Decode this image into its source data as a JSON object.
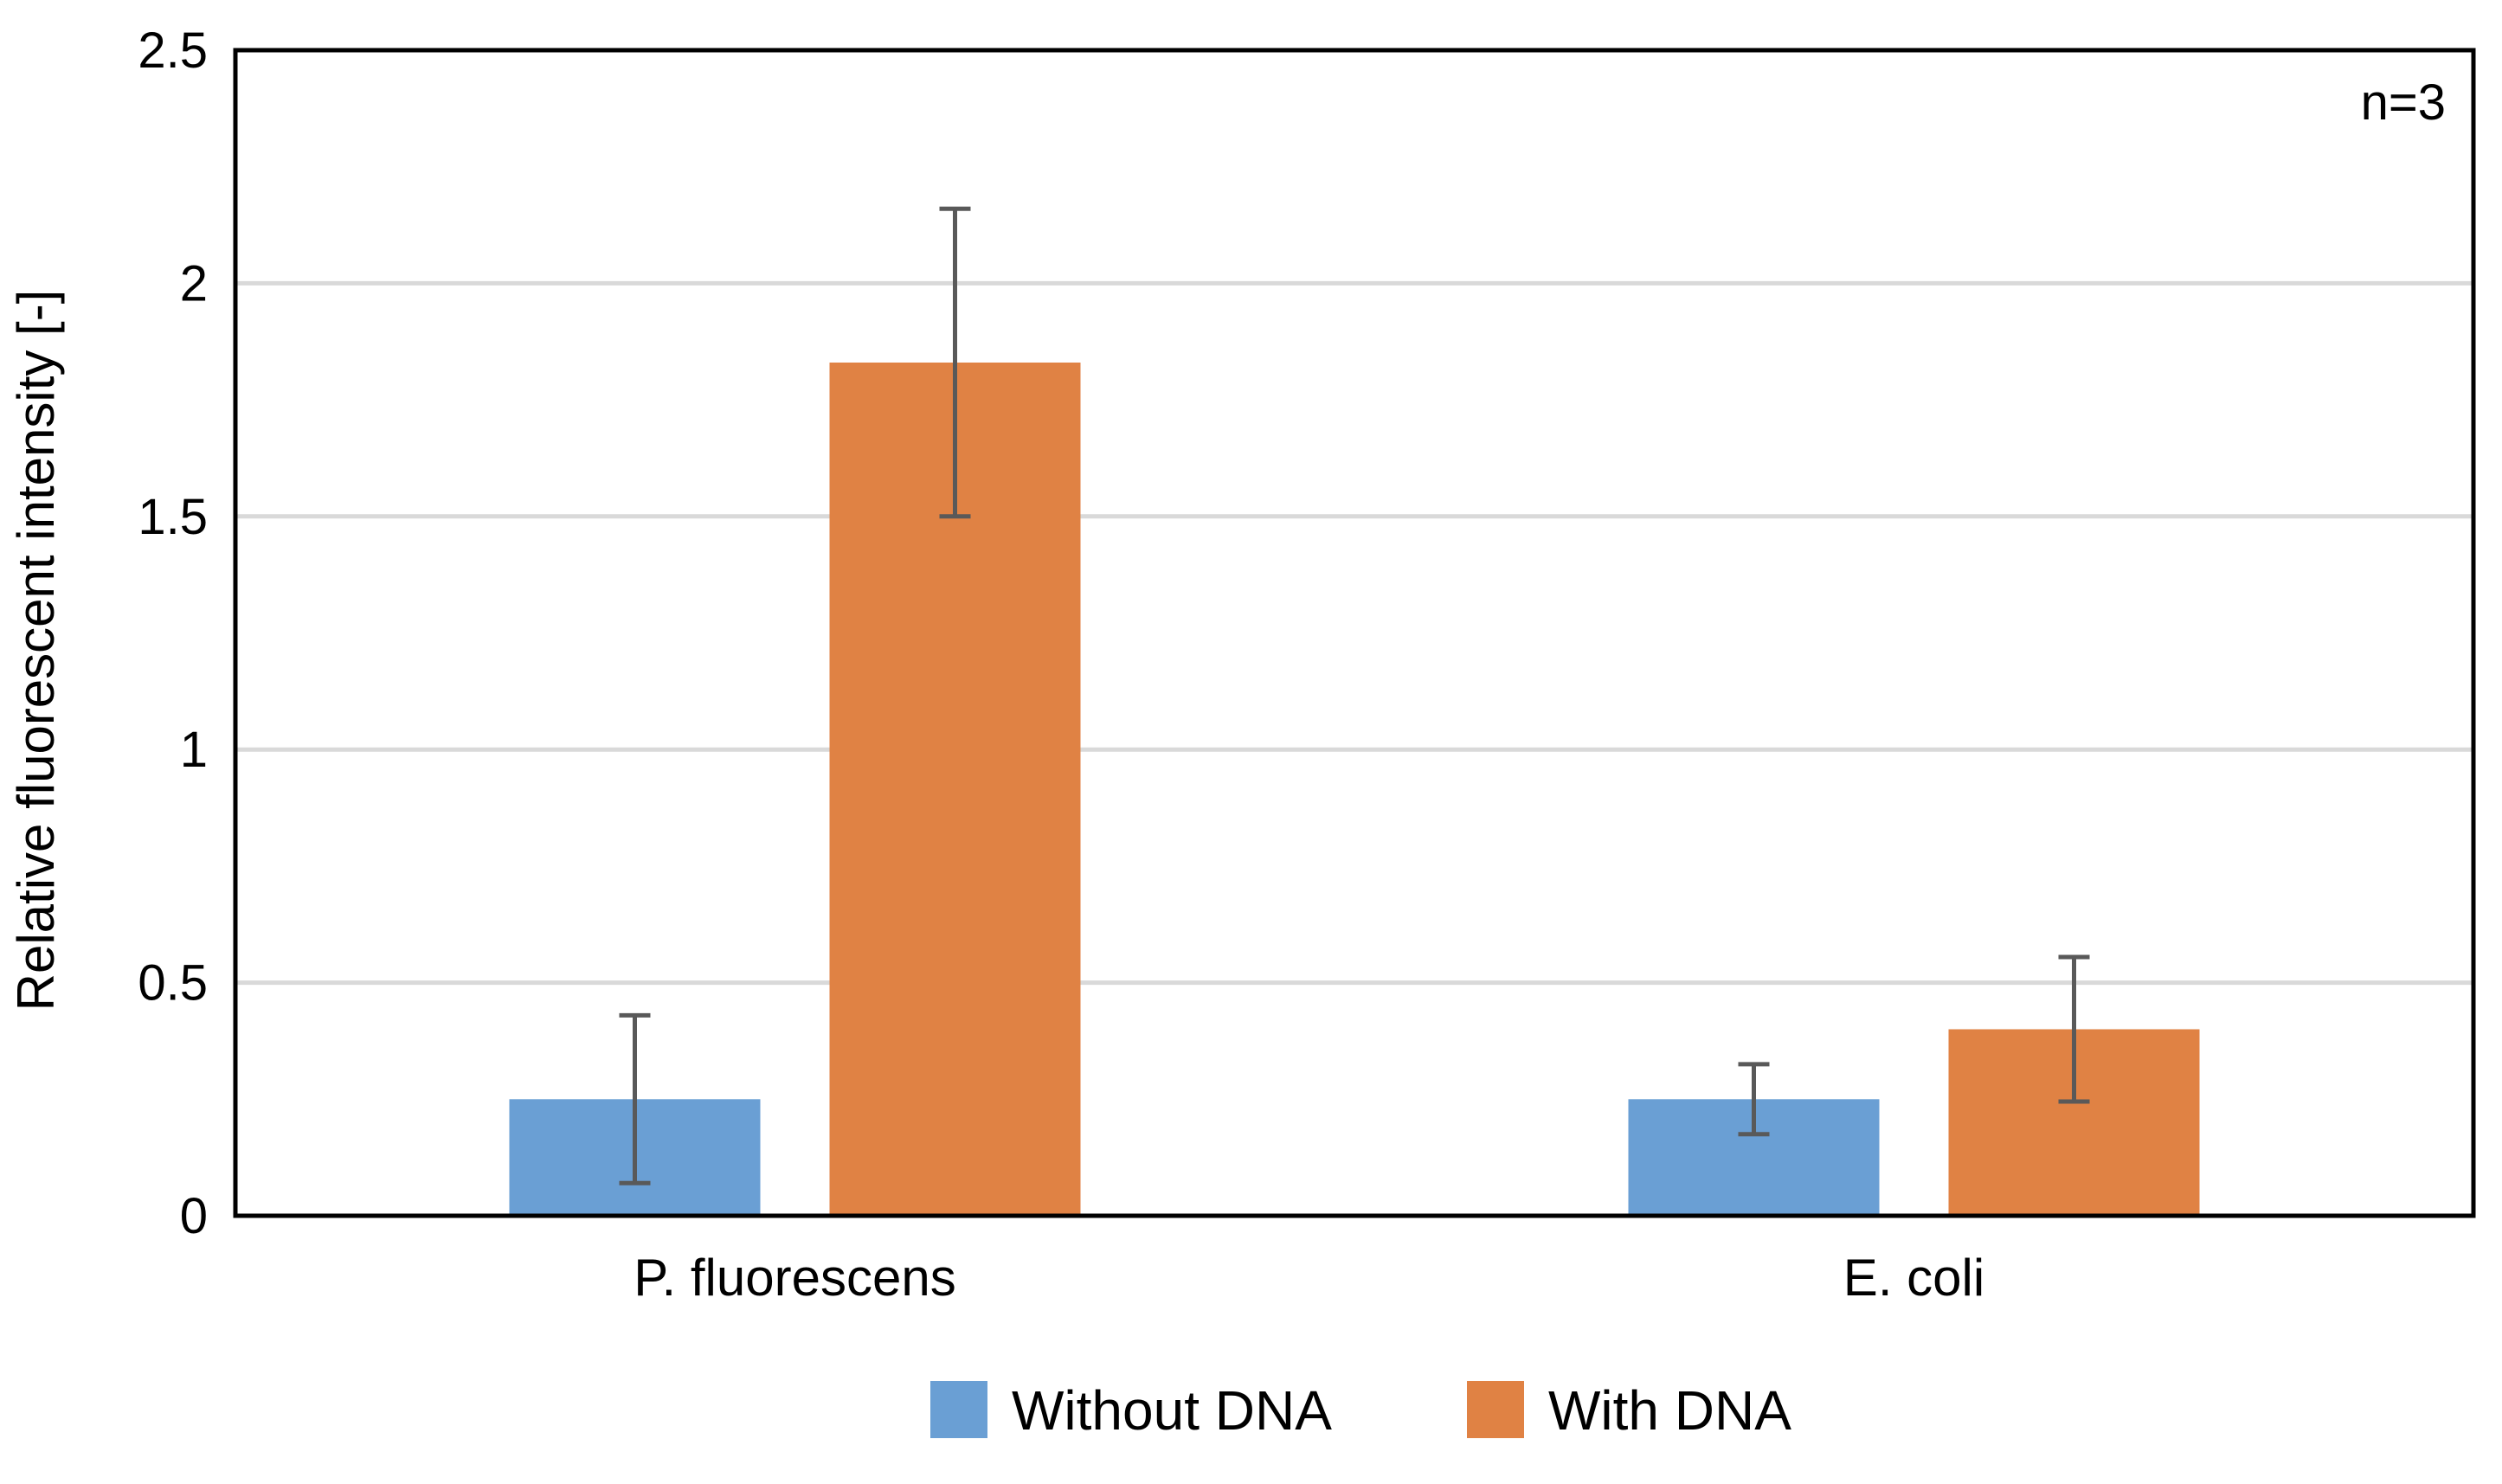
{
  "chart_data": {
    "type": "bar",
    "title": "",
    "xlabel": "",
    "ylabel": "Relative fluorescent intensity [-]",
    "ylim": [
      0,
      2.5
    ],
    "yticks": [
      0,
      0.5,
      1,
      1.5,
      2,
      2.5
    ],
    "ytick_labels": [
      "0",
      "0.5",
      "1",
      "1.5",
      "2",
      "2.5"
    ],
    "grid": true,
    "categories": [
      "P. fluorescens",
      "E. coli"
    ],
    "series": [
      {
        "name": "Without DNA",
        "color": "#6a9fd4",
        "values": [
          0.25,
          0.25
        ],
        "error": [
          0.18,
          0.075
        ]
      },
      {
        "name": "With DNA",
        "color": "#e08244",
        "values": [
          1.83,
          0.4
        ],
        "error": [
          0.33,
          0.155
        ]
      }
    ],
    "annotation": "n=3",
    "legend_position": "bottom-center"
  }
}
